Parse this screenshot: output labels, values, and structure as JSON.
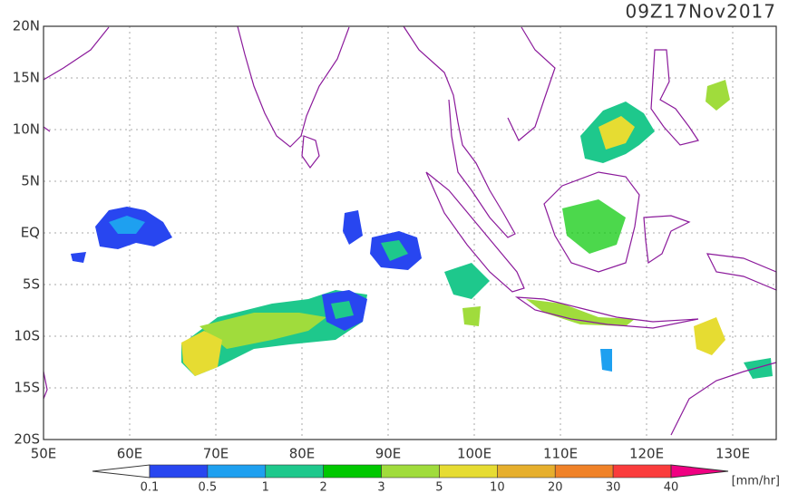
{
  "title": "09Z17Nov2017",
  "lat_labels": [
    "20N",
    "15N",
    "10N",
    "5N",
    "EQ",
    "5S",
    "10S",
    "15S",
    "20S"
  ],
  "lon_labels": [
    "50E",
    "60E",
    "70E",
    "80E",
    "90E",
    "100E",
    "110E",
    "120E",
    "130E"
  ],
  "colorbar": {
    "labels": [
      "0.1",
      "0.5",
      "1",
      "2",
      "3",
      "5",
      "10",
      "20",
      "30",
      "40"
    ],
    "colors": [
      "#ffffff",
      "#2846f0",
      "#1ea0f0",
      "#1ec88c",
      "#00c800",
      "#a0dc3c",
      "#e6dc32",
      "#e6af2d",
      "#f08228",
      "#fa3c3c",
      "#f00082"
    ],
    "unit": "[mm/hr]"
  }
}
